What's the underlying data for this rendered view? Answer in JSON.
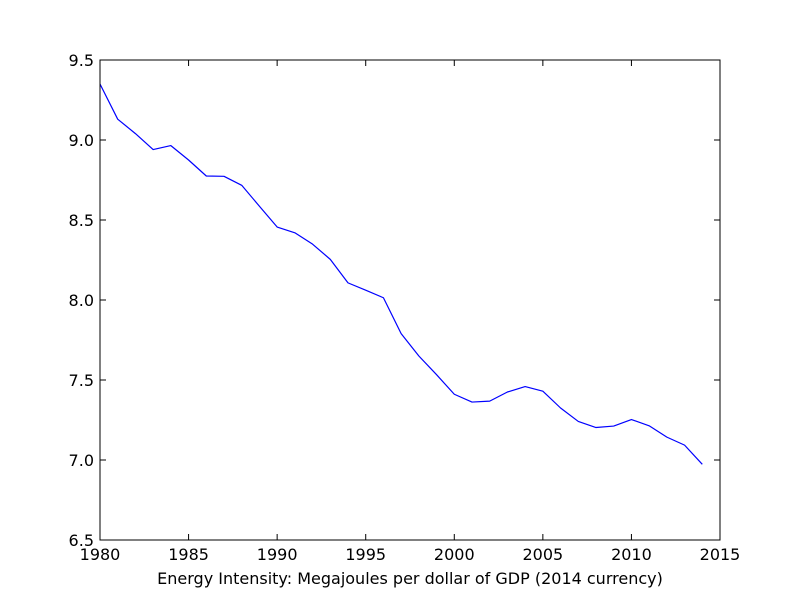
{
  "chart_data": {
    "type": "line",
    "title": "",
    "xlabel": "Energy Intensity: Megajoules per dollar of GDP (2014 currency)",
    "ylabel": "",
    "xlim": [
      1980,
      2015
    ],
    "ylim": [
      6.5,
      9.5
    ],
    "x_ticks": [
      1980,
      1985,
      1990,
      1995,
      2000,
      2005,
      2010,
      2015
    ],
    "x_tick_labels": [
      "1980",
      "1985",
      "1990",
      "1995",
      "2000",
      "2005",
      "2010",
      "2015"
    ],
    "y_ticks": [
      6.5,
      7.0,
      7.5,
      8.0,
      8.5,
      9.0,
      9.5
    ],
    "y_tick_labels": [
      "6.5",
      "7.0",
      "7.5",
      "8.0",
      "8.5",
      "9.0",
      "9.5"
    ],
    "grid": false,
    "legend": "none",
    "series": [
      {
        "color": "#0000ff",
        "x": [
          1980,
          1981,
          1982,
          1983,
          1984,
          1985,
          1986,
          1987,
          1988,
          1989,
          1990,
          1991,
          1992,
          1993,
          1994,
          1995,
          1996,
          1997,
          1998,
          1999,
          2000,
          2001,
          2002,
          2003,
          2004,
          2005,
          2006,
          2007,
          2008,
          2009,
          2010,
          2011,
          2012,
          2013,
          2014
        ],
        "y": [
          9.35,
          9.13,
          9.04,
          8.94,
          8.965,
          8.875,
          8.775,
          8.773,
          8.717,
          8.586,
          8.456,
          8.42,
          8.349,
          8.254,
          8.107,
          8.061,
          8.014,
          7.79,
          7.65,
          7.533,
          7.411,
          7.362,
          7.368,
          7.425,
          7.459,
          7.43,
          7.325,
          7.241,
          7.203,
          7.212,
          7.253,
          7.214,
          7.143,
          7.093,
          6.973
        ]
      }
    ]
  }
}
